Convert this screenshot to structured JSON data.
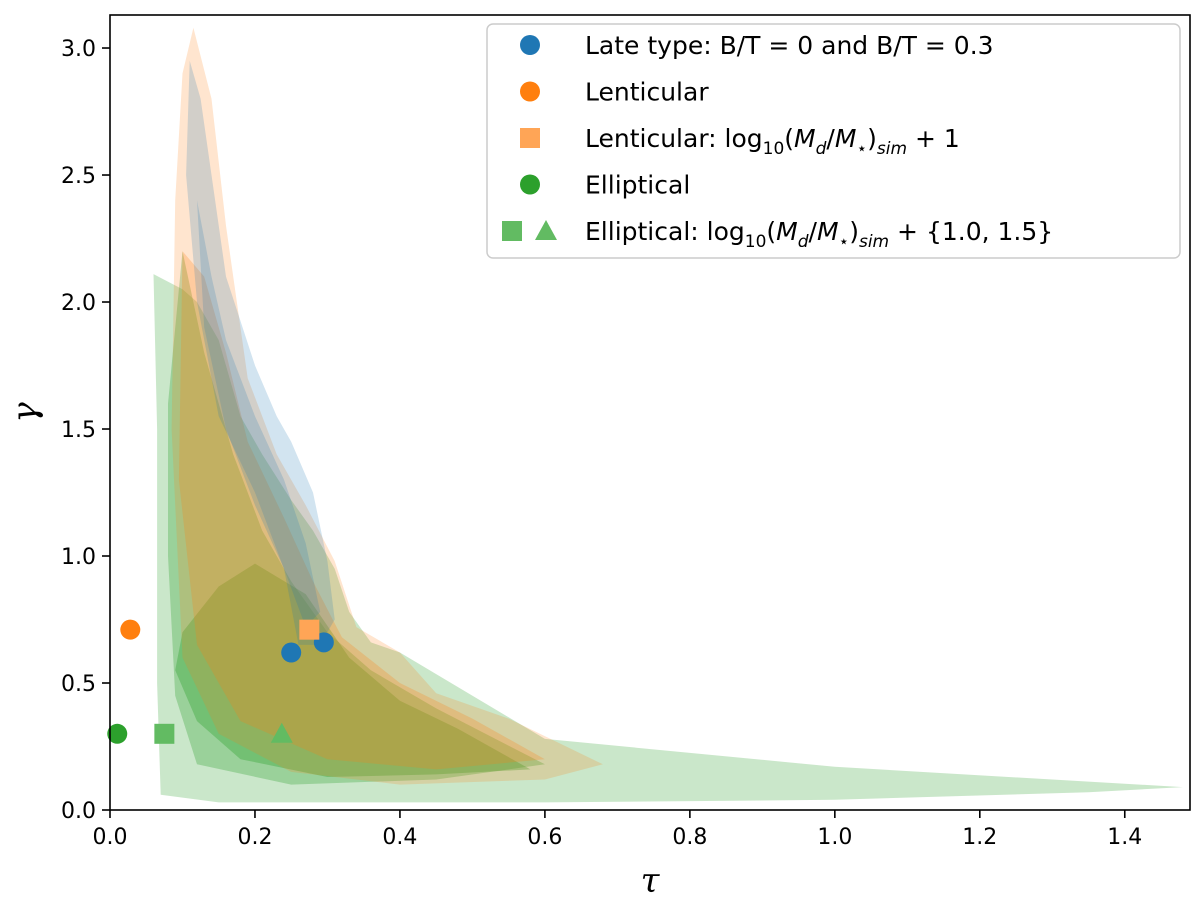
{
  "chart_data": {
    "type": "scatter",
    "xlabel": "τ",
    "ylabel": "γ",
    "xlim": [
      0.0,
      1.49
    ],
    "ylim": [
      0.0,
      3.13
    ],
    "xticks": [
      "0.0",
      "0.2",
      "0.4",
      "0.6",
      "0.8",
      "1.0",
      "1.2",
      "1.4"
    ],
    "xtick_values": [
      0.0,
      0.2,
      0.4,
      0.6,
      0.8,
      1.0,
      1.2,
      1.4
    ],
    "yticks": [
      "0.0",
      "0.5",
      "1.0",
      "1.5",
      "2.0",
      "2.5",
      "3.0"
    ],
    "ytick_values": [
      0.0,
      0.5,
      1.0,
      1.5,
      2.0,
      2.5,
      3.0
    ],
    "grid": false,
    "legend_position": "top-right",
    "colors": {
      "late_type": "#1f77b4",
      "lenticular": "#ff7f0e",
      "elliptical": "#2ca02c"
    },
    "regions": [
      {
        "group": "elliptical",
        "level": "outer",
        "color": "#2ca02c",
        "opacity": 0.25,
        "points": [
          [
            0.06,
            2.11
          ],
          [
            0.1,
            2.05
          ],
          [
            0.12,
            2.0
          ],
          [
            0.15,
            1.85
          ],
          [
            0.18,
            1.55
          ],
          [
            0.21,
            1.4
          ],
          [
            0.25,
            1.22
          ],
          [
            0.28,
            1.1
          ],
          [
            0.31,
            0.95
          ],
          [
            0.33,
            0.78
          ],
          [
            0.36,
            0.66
          ],
          [
            0.4,
            0.62
          ],
          [
            0.6,
            0.28
          ],
          [
            1.0,
            0.17
          ],
          [
            1.3,
            0.12
          ],
          [
            1.48,
            0.09
          ],
          [
            1.35,
            0.07
          ],
          [
            1.0,
            0.04
          ],
          [
            0.6,
            0.03
          ],
          [
            0.15,
            0.03
          ],
          [
            0.07,
            0.06
          ],
          [
            0.065,
            0.5
          ],
          [
            0.065,
            1.5
          ]
        ]
      },
      {
        "group": "elliptical",
        "level": "inner",
        "color": "#2ca02c",
        "opacity": 0.3,
        "points": [
          [
            0.08,
            1.6
          ],
          [
            0.1,
            2.2
          ],
          [
            0.13,
            1.8
          ],
          [
            0.17,
            1.4
          ],
          [
            0.21,
            1.1
          ],
          [
            0.25,
            0.9
          ],
          [
            0.3,
            0.7
          ],
          [
            0.36,
            0.55
          ],
          [
            0.45,
            0.4
          ],
          [
            0.6,
            0.18
          ],
          [
            0.45,
            0.12
          ],
          [
            0.25,
            0.1
          ],
          [
            0.12,
            0.18
          ],
          [
            0.09,
            0.45
          ],
          [
            0.08,
            1.0
          ]
        ]
      },
      {
        "group": "elliptical",
        "level": "core",
        "color": "#2ca02c",
        "opacity": 0.35,
        "points": [
          [
            0.1,
            0.7
          ],
          [
            0.15,
            0.88
          ],
          [
            0.2,
            0.97
          ],
          [
            0.27,
            0.85
          ],
          [
            0.33,
            0.6
          ],
          [
            0.4,
            0.43
          ],
          [
            0.48,
            0.32
          ],
          [
            0.58,
            0.16
          ],
          [
            0.45,
            0.14
          ],
          [
            0.3,
            0.13
          ],
          [
            0.18,
            0.2
          ],
          [
            0.12,
            0.35
          ],
          [
            0.09,
            0.55
          ]
        ]
      },
      {
        "group": "lenticular",
        "level": "outer",
        "color": "#ff7f0e",
        "opacity": 0.2,
        "points": [
          [
            0.1,
            2.9
          ],
          [
            0.115,
            3.08
          ],
          [
            0.14,
            2.8
          ],
          [
            0.16,
            2.3
          ],
          [
            0.19,
            1.7
          ],
          [
            0.23,
            1.4
          ],
          [
            0.27,
            1.2
          ],
          [
            0.31,
            0.98
          ],
          [
            0.34,
            0.72
          ],
          [
            0.4,
            0.62
          ],
          [
            0.45,
            0.46
          ],
          [
            0.55,
            0.36
          ],
          [
            0.68,
            0.18
          ],
          [
            0.6,
            0.12
          ],
          [
            0.4,
            0.1
          ],
          [
            0.25,
            0.15
          ],
          [
            0.15,
            0.3
          ],
          [
            0.1,
            0.6
          ],
          [
            0.085,
            1.5
          ],
          [
            0.09,
            2.4
          ]
        ]
      },
      {
        "group": "lenticular",
        "level": "inner",
        "color": "#ff7f0e",
        "opacity": 0.25,
        "points": [
          [
            0.1,
            2.2
          ],
          [
            0.13,
            2.1
          ],
          [
            0.16,
            1.8
          ],
          [
            0.19,
            1.45
          ],
          [
            0.24,
            1.15
          ],
          [
            0.28,
            0.9
          ],
          [
            0.32,
            0.68
          ],
          [
            0.4,
            0.5
          ],
          [
            0.5,
            0.36
          ],
          [
            0.6,
            0.2
          ],
          [
            0.45,
            0.16
          ],
          [
            0.3,
            0.2
          ],
          [
            0.18,
            0.35
          ],
          [
            0.12,
            0.65
          ],
          [
            0.095,
            1.3
          ]
        ]
      },
      {
        "group": "late_type",
        "level": "outer",
        "color": "#1f77b4",
        "opacity": 0.2,
        "points": [
          [
            0.11,
            2.95
          ],
          [
            0.125,
            2.8
          ],
          [
            0.14,
            2.5
          ],
          [
            0.16,
            2.1
          ],
          [
            0.2,
            1.75
          ],
          [
            0.23,
            1.55
          ],
          [
            0.25,
            1.45
          ],
          [
            0.28,
            1.25
          ],
          [
            0.3,
            0.98
          ],
          [
            0.31,
            0.75
          ],
          [
            0.29,
            0.65
          ],
          [
            0.26,
            0.65
          ],
          [
            0.24,
            0.95
          ],
          [
            0.2,
            1.25
          ],
          [
            0.15,
            1.55
          ],
          [
            0.12,
            2.0
          ],
          [
            0.105,
            2.5
          ]
        ]
      },
      {
        "group": "late_type",
        "level": "inner",
        "color": "#1f77b4",
        "opacity": 0.2,
        "points": [
          [
            0.12,
            2.4
          ],
          [
            0.14,
            2.1
          ],
          [
            0.16,
            1.85
          ],
          [
            0.2,
            1.55
          ],
          [
            0.24,
            1.3
          ],
          [
            0.27,
            1.05
          ],
          [
            0.29,
            0.78
          ],
          [
            0.27,
            0.72
          ],
          [
            0.24,
            0.95
          ],
          [
            0.2,
            1.2
          ],
          [
            0.16,
            1.5
          ],
          [
            0.13,
            1.9
          ]
        ]
      }
    ],
    "series": [
      {
        "name": "Late type: B/T = 0 and B/T = 0.3",
        "marker": "circle",
        "color": "#1f77b4",
        "points": [
          [
            0.25,
            0.62
          ],
          [
            0.295,
            0.66
          ]
        ]
      },
      {
        "name": "Lenticular",
        "marker": "circle",
        "color": "#ff7f0e",
        "points": [
          [
            0.028,
            0.71
          ]
        ]
      },
      {
        "name": "Lenticular: log10(Md/M★)sim + 1",
        "marker": "square",
        "color": "#ffa556",
        "points": [
          [
            0.275,
            0.71
          ]
        ]
      },
      {
        "name": "Elliptical",
        "marker": "circle",
        "color": "#2ca02c",
        "points": [
          [
            0.01,
            0.3
          ]
        ]
      },
      {
        "name": "Elliptical: log10(Md/M★)sim + {1.0, 1.5}",
        "marker": "square",
        "color": "#62bb62",
        "points": [
          [
            0.075,
            0.3
          ]
        ]
      },
      {
        "name": "Elliptical: log10(Md/M★)sim + {1.0, 1.5}",
        "marker": "triangle",
        "color": "#62bb62",
        "points": [
          [
            0.237,
            0.3
          ]
        ]
      }
    ],
    "legend": [
      {
        "markers": [
          "circle"
        ],
        "colors": [
          "#1f77b4"
        ],
        "parts": [
          {
            "t": "Late type: B/T = 0 and B/T = 0.3"
          }
        ]
      },
      {
        "markers": [
          "circle"
        ],
        "colors": [
          "#ff7f0e"
        ],
        "parts": [
          {
            "t": "Lenticular"
          }
        ]
      },
      {
        "markers": [
          "square"
        ],
        "colors": [
          "#ffa556"
        ],
        "parts": [
          {
            "t": "Lenticular: log"
          },
          {
            "t": "10",
            "sub": true
          },
          {
            "t": "("
          },
          {
            "t": "M",
            "i": true
          },
          {
            "t": "d",
            "i": true,
            "sub": true
          },
          {
            "t": "/"
          },
          {
            "t": "M",
            "i": true
          },
          {
            "t": "⋆",
            "sub": true
          },
          {
            "t": ")"
          },
          {
            "t": "sim",
            "i": true,
            "sub": true
          },
          {
            "t": " + 1"
          }
        ]
      },
      {
        "markers": [
          "circle"
        ],
        "colors": [
          "#2ca02c"
        ],
        "parts": [
          {
            "t": "Elliptical"
          }
        ]
      },
      {
        "markers": [
          "square",
          "triangle"
        ],
        "colors": [
          "#62bb62",
          "#62bb62"
        ],
        "parts": [
          {
            "t": "Elliptical: log"
          },
          {
            "t": "10",
            "sub": true
          },
          {
            "t": "("
          },
          {
            "t": "M",
            "i": true
          },
          {
            "t": "d",
            "i": true,
            "sub": true
          },
          {
            "t": "/"
          },
          {
            "t": "M",
            "i": true
          },
          {
            "t": "⋆",
            "sub": true
          },
          {
            "t": ")"
          },
          {
            "t": "sim",
            "i": true,
            "sub": true
          },
          {
            "t": " + {1.0, 1.5}"
          }
        ]
      }
    ]
  }
}
